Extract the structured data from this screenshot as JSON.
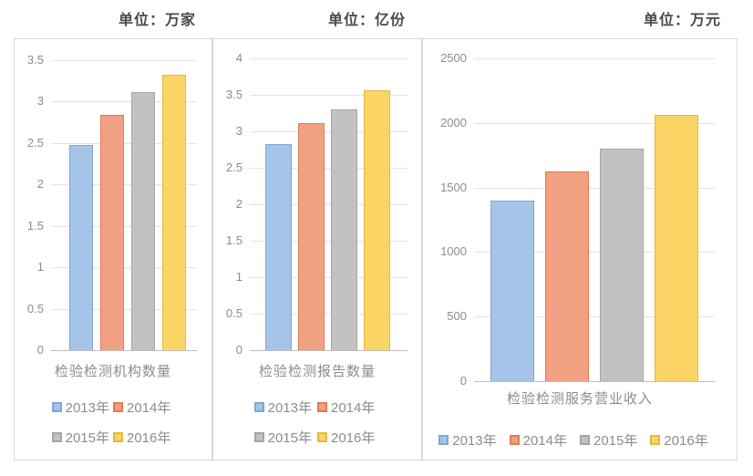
{
  "page": {
    "background": "#ffffff"
  },
  "series": [
    {
      "label": "2013年",
      "fill": "#A5C4E8",
      "border": "#7FA7D6"
    },
    {
      "label": "2014年",
      "fill": "#F1A081",
      "border": "#E07C52"
    },
    {
      "label": "2015年",
      "fill": "#C2C2C2",
      "border": "#A5A5A5"
    },
    {
      "label": "2016年",
      "fill": "#FBD466",
      "border": "#E6B83C"
    }
  ],
  "chart_data": [
    {
      "type": "bar",
      "title": "单位：万家",
      "categories": [
        "2013年",
        "2014年",
        "2015年",
        "2016年"
      ],
      "values": [
        2.48,
        2.84,
        3.12,
        3.32
      ],
      "xlabel": "检验检测机构数量",
      "ylabel": "",
      "ylim": [
        0,
        3.5
      ],
      "y_tick_labels": [
        "3.5",
        "3",
        "2.5",
        "2",
        "1.5",
        "1",
        "0.5",
        "0"
      ],
      "grid": true,
      "legend_position": "bottom",
      "legend_rows": [
        [
          0,
          1
        ],
        [
          2,
          3
        ]
      ]
    },
    {
      "type": "bar",
      "title": "单位：亿份",
      "categories": [
        "2013年",
        "2014年",
        "2015年",
        "2016年"
      ],
      "values": [
        2.83,
        3.11,
        3.3,
        3.56
      ],
      "xlabel": "检验检测报告数量",
      "ylabel": "",
      "ylim": [
        0,
        4
      ],
      "y_tick_labels": [
        "4",
        "3.5",
        "3",
        "2.5",
        "2",
        "1.5",
        "1",
        "0.5",
        "0"
      ],
      "grid": true,
      "legend_position": "bottom",
      "legend_rows": [
        [
          0,
          1
        ],
        [
          2,
          3
        ]
      ]
    },
    {
      "type": "bar",
      "title": "单位：万元",
      "categories": [
        "2013年",
        "2014年",
        "2015年",
        "2016年"
      ],
      "values": [
        1400,
        1625,
        1800,
        2065
      ],
      "xlabel": "检验检测服务营业收入",
      "ylabel": "",
      "ylim": [
        0,
        2500
      ],
      "y_tick_labels": [
        "2500",
        "2000",
        "1500",
        "1000",
        "500",
        "0"
      ],
      "grid": true,
      "legend_position": "bottom",
      "legend_rows": [
        [
          0,
          1,
          2,
          3
        ]
      ]
    }
  ]
}
